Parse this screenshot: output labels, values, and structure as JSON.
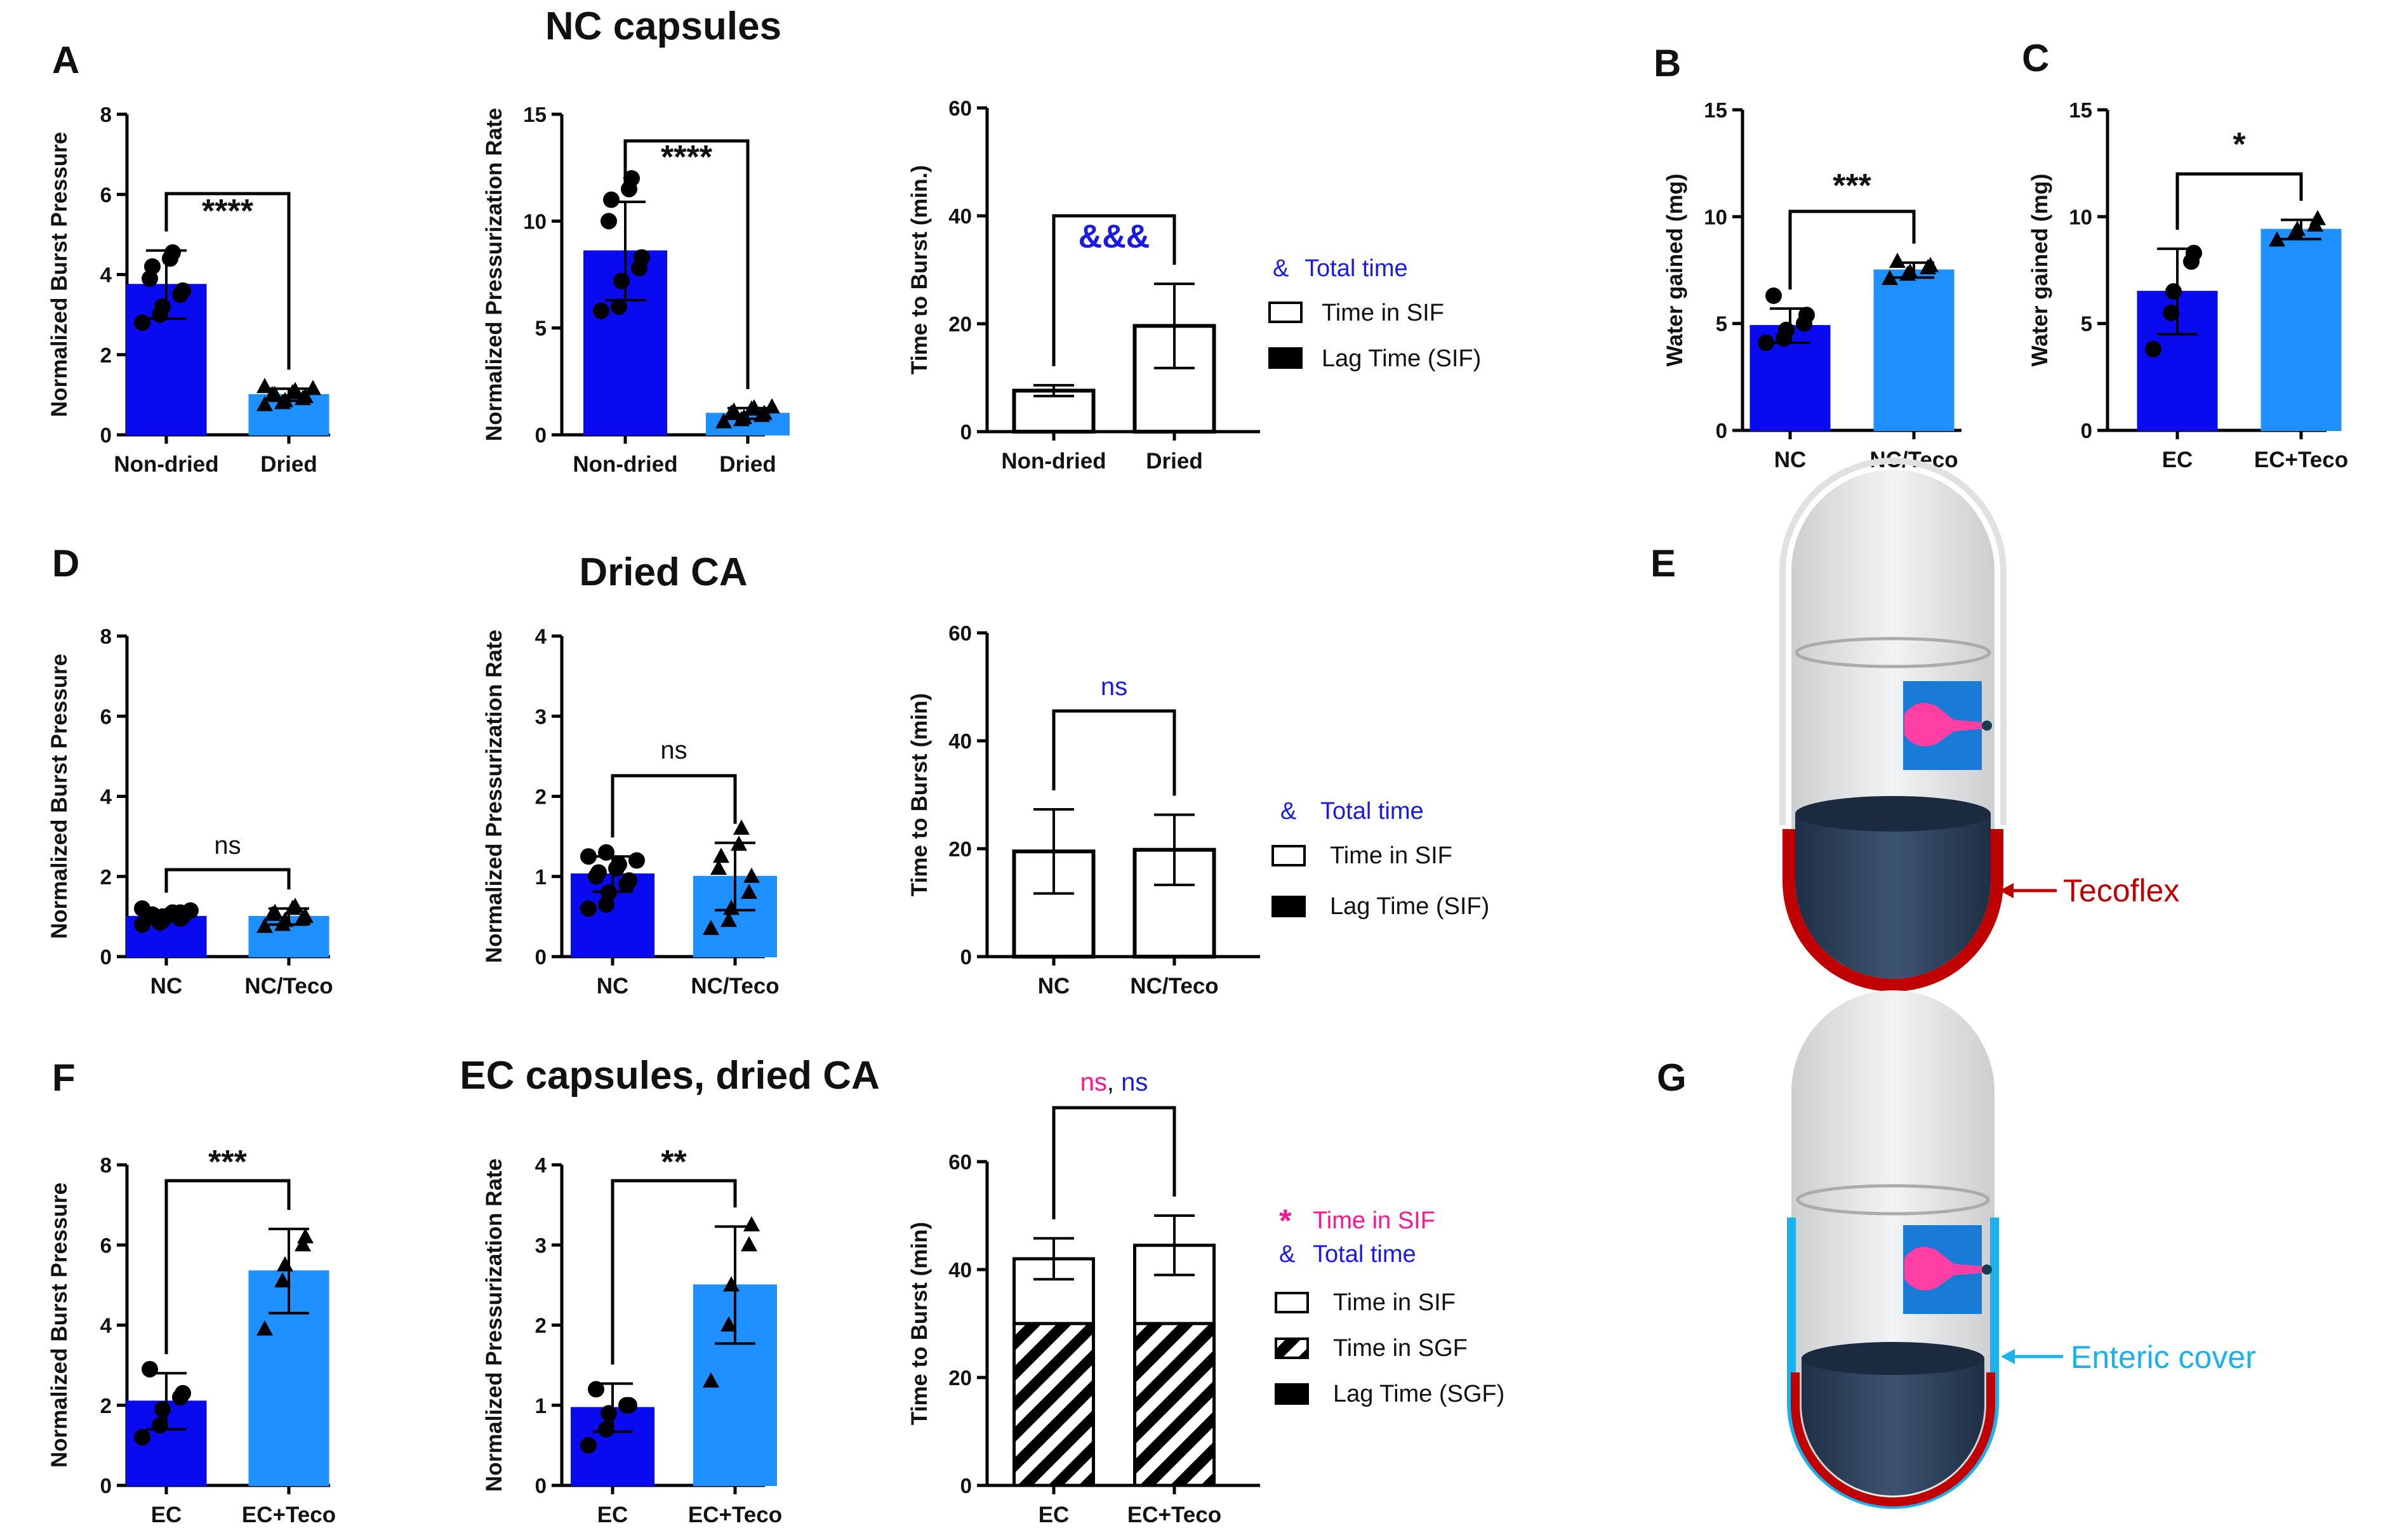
{
  "colors": {
    "dark_blue": "#0a0af0",
    "light_blue": "#1e90ff",
    "pink": "#ff1493",
    "sig_blue": "#1a1ae6",
    "tecoflex_red": "#c00000",
    "enteric_blue": "#1ab2ee"
  },
  "section_titles": {
    "nc": "NC capsules",
    "dried_ca": "Dried CA",
    "ec": "EC capsules, dried CA"
  },
  "legends": {
    "nc_time": {
      "sym": "&",
      "total": "Total time",
      "items": [
        "Time in SIF",
        "Lag Time (SIF)"
      ]
    },
    "dried_time": {
      "sym": "&",
      "total": "Total time",
      "items": [
        "Time in SIF",
        "Lag Time (SIF)"
      ]
    },
    "ec_time": {
      "star": "*",
      "sif": "Time in SIF",
      "sym": "&",
      "total": "Total time",
      "items": [
        "Time in SIF",
        "Time in SGF",
        "Lag Time (SGF)"
      ]
    }
  },
  "illustrations": {
    "E": {
      "letter": "E",
      "label": "Tecoflex"
    },
    "G": {
      "letter": "G",
      "label": "Enteric cover"
    }
  },
  "chart_data": [
    {
      "id": "A1",
      "panel": "A",
      "type": "bar",
      "categories": [
        "Non-dried",
        "Dried"
      ],
      "values": [
        3.75,
        1.0
      ],
      "errors": [
        0.85,
        0.15
      ],
      "ylabel": "Normalized Burst Pressure",
      "ylim": [
        0,
        8
      ],
      "yticks": [
        0,
        2,
        4,
        6,
        8
      ],
      "points": [
        [
          2.8,
          3.0,
          3.2,
          3.5,
          3.6,
          3.9,
          4.2,
          4.4,
          4.55
        ],
        [
          0.75,
          0.8,
          0.85,
          0.9,
          0.95,
          1.0,
          1.0,
          1.05,
          1.1,
          1.15,
          1.2
        ]
      ],
      "markers": [
        "circle",
        "triangle"
      ],
      "significance": "****"
    },
    {
      "id": "A2",
      "panel": "A",
      "type": "bar",
      "categories": [
        "Non-dried",
        "Dried"
      ],
      "values": [
        8.6,
        1.0
      ],
      "errors": [
        2.3,
        0.25
      ],
      "ylabel": "Normalized Pressurization Rate",
      "ylim": [
        0,
        15
      ],
      "yticks": [
        0,
        5,
        10,
        15
      ],
      "points": [
        [
          5.8,
          6.0,
          7.2,
          7.8,
          8.3,
          10.0,
          11.0,
          11.5,
          12.0
        ],
        [
          0.6,
          0.7,
          0.8,
          0.9,
          1.0,
          1.0,
          1.1,
          1.2,
          1.25,
          1.3
        ]
      ],
      "markers": [
        "circle",
        "triangle"
      ],
      "significance": "****"
    },
    {
      "id": "A3",
      "panel": "A",
      "type": "bar",
      "categories": [
        "Non-dried",
        "Dried"
      ],
      "values": [
        7.6,
        19.6
      ],
      "errors": [
        1.0,
        7.8
      ],
      "ylabel": "Time to Burst (min.)",
      "ylim": [
        0,
        60
      ],
      "yticks": [
        0,
        20,
        40,
        60
      ],
      "significance": "&&&"
    },
    {
      "id": "B",
      "panel": "B",
      "type": "bar",
      "categories": [
        "NC",
        "NC/Teco"
      ],
      "values": [
        4.9,
        7.5
      ],
      "errors": [
        0.8,
        0.35
      ],
      "ylabel": "Water gained (mg)",
      "ylim": [
        0,
        15
      ],
      "yticks": [
        0,
        5,
        10,
        15
      ],
      "points": [
        [
          4.1,
          4.3,
          4.7,
          5.0,
          5.4,
          6.3
        ],
        [
          7.1,
          7.3,
          7.4,
          7.6,
          7.7,
          7.9
        ]
      ],
      "markers": [
        "circle",
        "triangle"
      ],
      "significance": "***"
    },
    {
      "id": "C",
      "panel": "C",
      "type": "bar",
      "categories": [
        "EC",
        "EC+Teco"
      ],
      "values": [
        6.5,
        9.4
      ],
      "errors": [
        2.0,
        0.45
      ],
      "ylabel": "Water gained (mg)",
      "ylim": [
        0,
        15
      ],
      "yticks": [
        0,
        5,
        10,
        15
      ],
      "points": [
        [
          3.8,
          5.5,
          6.5,
          7.9,
          8.3
        ],
        [
          8.9,
          9.2,
          9.4,
          9.6,
          9.9
        ]
      ],
      "markers": [
        "circle",
        "triangle"
      ],
      "significance": "*"
    },
    {
      "id": "D1",
      "panel": "D",
      "type": "bar",
      "categories": [
        "NC",
        "NC/Teco"
      ],
      "values": [
        1.0,
        1.0
      ],
      "errors": [
        0.12,
        0.2
      ],
      "ylabel": "Normalized Burst Pressure",
      "ylim": [
        0,
        8
      ],
      "yticks": [
        0,
        2,
        4,
        6,
        8
      ],
      "points": [
        [
          0.8,
          0.85,
          0.9,
          0.95,
          1.0,
          1.0,
          1.05,
          1.05,
          1.1,
          1.15,
          1.2,
          0.9,
          1.0,
          1.1
        ],
        [
          0.75,
          0.8,
          0.9,
          0.95,
          1.0,
          1.05,
          1.1,
          1.2,
          1.25
        ]
      ],
      "markers": [
        "circle",
        "triangle"
      ],
      "significance": "ns"
    },
    {
      "id": "D2",
      "panel": "D",
      "type": "bar",
      "categories": [
        "NC",
        "NC/Teco"
      ],
      "values": [
        1.03,
        1.0
      ],
      "errors": [
        0.22,
        0.42
      ],
      "ylabel": "Normalized Pressurization Rate",
      "ylim": [
        0,
        4
      ],
      "yticks": [
        0,
        1,
        2,
        3,
        4
      ],
      "points": [
        [
          0.6,
          0.65,
          0.8,
          0.9,
          0.95,
          1.0,
          1.05,
          1.1,
          1.15,
          1.2,
          1.25,
          1.3
        ],
        [
          0.35,
          0.45,
          0.6,
          0.8,
          1.0,
          1.1,
          1.25,
          1.4,
          1.6
        ]
      ],
      "markers": [
        "circle",
        "triangle"
      ],
      "significance": "ns"
    },
    {
      "id": "D3",
      "panel": "D",
      "type": "bar",
      "categories": [
        "NC",
        "NC/Teco"
      ],
      "values": [
        19.5,
        19.8
      ],
      "errors": [
        7.8,
        6.5
      ],
      "ylabel": "Time to Burst (min)",
      "ylim": [
        0,
        60
      ],
      "yticks": [
        0,
        20,
        40,
        60
      ],
      "significance": "ns"
    },
    {
      "id": "F1",
      "panel": "F",
      "type": "bar",
      "categories": [
        "EC",
        "EC+Teco"
      ],
      "values": [
        2.1,
        5.35
      ],
      "errors": [
        0.7,
        1.05
      ],
      "ylabel": "Normalized Burst Pressure",
      "ylim": [
        0,
        8
      ],
      "yticks": [
        0,
        2,
        4,
        6,
        8
      ],
      "points": [
        [
          1.2,
          1.5,
          1.9,
          2.2,
          2.3,
          2.9
        ],
        [
          3.9,
          5.1,
          5.5,
          6.0,
          6.2
        ]
      ],
      "markers": [
        "circle",
        "triangle"
      ],
      "significance": "***"
    },
    {
      "id": "F2",
      "panel": "F",
      "type": "bar",
      "categories": [
        "EC",
        "EC+Teco"
      ],
      "values": [
        0.97,
        2.5
      ],
      "errors": [
        0.3,
        0.73
      ],
      "ylabel": "Normalized Pressurization Rate",
      "ylim": [
        0,
        4
      ],
      "yticks": [
        0,
        1,
        2,
        3,
        4
      ],
      "points": [
        [
          0.5,
          0.7,
          0.9,
          1.0,
          1.0,
          1.2
        ],
        [
          1.3,
          2.0,
          2.5,
          3.0,
          3.25
        ]
      ],
      "markers": [
        "circle",
        "triangle"
      ],
      "significance": "**"
    },
    {
      "id": "F3",
      "panel": "F",
      "type": "bar",
      "categories": [
        "EC",
        "EC+Teco"
      ],
      "stacked": [
        {
          "name": "Time in SGF",
          "values": [
            30,
            30
          ]
        },
        {
          "name": "Time in SIF",
          "values": [
            12,
            14.5
          ]
        }
      ],
      "totals": [
        42,
        44.5
      ],
      "errors": [
        3.8,
        5.5
      ],
      "ylabel": "Time to Burst (min)",
      "ylim": [
        0,
        60
      ],
      "yticks": [
        0,
        20,
        40,
        60
      ],
      "significance": [
        "ns",
        ",",
        "ns"
      ]
    }
  ]
}
